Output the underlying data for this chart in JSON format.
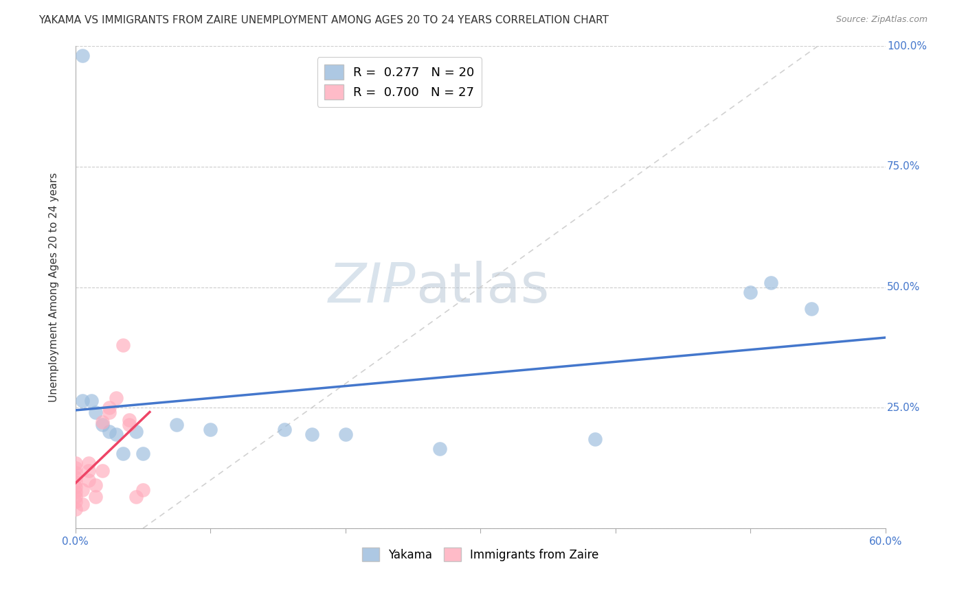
{
  "title": "YAKAMA VS IMMIGRANTS FROM ZAIRE UNEMPLOYMENT AMONG AGES 20 TO 24 YEARS CORRELATION CHART",
  "source": "Source: ZipAtlas.com",
  "ylabel": "Unemployment Among Ages 20 to 24 years",
  "xlim": [
    0.0,
    0.6
  ],
  "ylim": [
    0.0,
    1.0
  ],
  "xticks": [
    0.0,
    0.1,
    0.2,
    0.3,
    0.4,
    0.5,
    0.6
  ],
  "xticklabels": [
    "0.0%",
    "",
    "",
    "",
    "",
    "",
    "60.0%"
  ],
  "yticks": [
    0.0,
    0.25,
    0.5,
    0.75,
    1.0
  ],
  "yticklabels": [
    "",
    "25.0%",
    "50.0%",
    "75.0%",
    "100.0%"
  ],
  "yakama_points": [
    [
      0.005,
      0.98
    ],
    [
      0.005,
      0.265
    ],
    [
      0.012,
      0.265
    ],
    [
      0.015,
      0.24
    ],
    [
      0.02,
      0.215
    ],
    [
      0.025,
      0.2
    ],
    [
      0.03,
      0.195
    ],
    [
      0.035,
      0.155
    ],
    [
      0.045,
      0.2
    ],
    [
      0.05,
      0.155
    ],
    [
      0.075,
      0.215
    ],
    [
      0.1,
      0.205
    ],
    [
      0.155,
      0.205
    ],
    [
      0.175,
      0.195
    ],
    [
      0.2,
      0.195
    ],
    [
      0.27,
      0.165
    ],
    [
      0.385,
      0.185
    ],
    [
      0.5,
      0.49
    ],
    [
      0.515,
      0.51
    ],
    [
      0.545,
      0.455
    ]
  ],
  "zaire_points": [
    [
      0.0,
      0.04
    ],
    [
      0.0,
      0.055
    ],
    [
      0.0,
      0.065
    ],
    [
      0.0,
      0.075
    ],
    [
      0.0,
      0.085
    ],
    [
      0.0,
      0.095
    ],
    [
      0.0,
      0.105
    ],
    [
      0.0,
      0.115
    ],
    [
      0.0,
      0.125
    ],
    [
      0.0,
      0.135
    ],
    [
      0.005,
      0.05
    ],
    [
      0.005,
      0.08
    ],
    [
      0.01,
      0.1
    ],
    [
      0.01,
      0.12
    ],
    [
      0.01,
      0.135
    ],
    [
      0.015,
      0.065
    ],
    [
      0.015,
      0.09
    ],
    [
      0.02,
      0.12
    ],
    [
      0.02,
      0.22
    ],
    [
      0.025,
      0.25
    ],
    [
      0.025,
      0.24
    ],
    [
      0.03,
      0.27
    ],
    [
      0.035,
      0.38
    ],
    [
      0.04,
      0.215
    ],
    [
      0.04,
      0.225
    ],
    [
      0.045,
      0.065
    ],
    [
      0.05,
      0.08
    ]
  ],
  "yakama_color": "#99BBDD",
  "zaire_color": "#FFAABB",
  "yakama_edge_color": "#99BBDD",
  "zaire_edge_color": "#FFAABB",
  "yakama_line_color": "#4477CC",
  "zaire_line_color": "#EE4466",
  "diagonal_line_color": "#CCCCCC",
  "R_yakama": 0.277,
  "N_yakama": 20,
  "R_zaire": 0.7,
  "N_zaire": 27,
  "watermark_zip": "ZIP",
  "watermark_atlas": "atlas",
  "watermark_color_zip": "#BBCCDD",
  "watermark_color_atlas": "#AABBCC"
}
